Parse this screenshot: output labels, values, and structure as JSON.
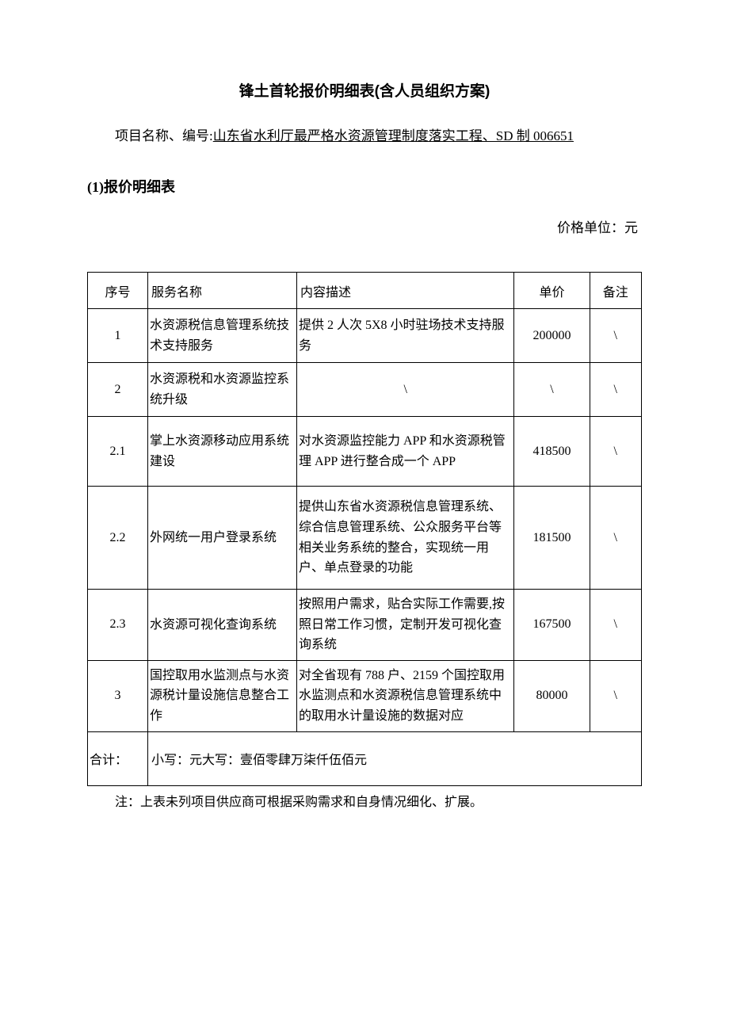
{
  "title": "锋土首轮报价明细表(含人员组织方案)",
  "project": {
    "label": "项目名称、编号:",
    "value": "山东省水利厅最严格水资源管理制度落实工程、SD 制 006651"
  },
  "sub_heading": "(1)报价明细表",
  "price_unit": "价格单位：元",
  "table": {
    "headers": {
      "seq": "序号",
      "name": "服务名称",
      "desc": "内容描述",
      "price": "单价",
      "note": "备注"
    },
    "rows": [
      {
        "seq": "1",
        "name": "水资源税信息管理系统技术支持服务",
        "desc": "提供 2 人次 5X8 小时驻场技术支持服务",
        "price": "200000",
        "note": "\\"
      },
      {
        "seq": "2",
        "name": "水资源税和水资源监控系统升级",
        "desc": "\\",
        "price": "\\",
        "note": "\\"
      },
      {
        "seq": "2.1",
        "name": "掌上水资源移动应用系统建设",
        "desc": "对水资源监控能力 APP 和水资源税管理 APP 进行整合成一个 APP",
        "price": "418500",
        "note": "\\"
      },
      {
        "seq": "2.2",
        "name": "外网统一用户登录系统",
        "desc": "提供山东省水资源税信息管理系统、综合信息管理系统、公众服务平台等相关业务系统的整合，实现统一用户、单点登录的功能",
        "price": "181500",
        "note": "\\"
      },
      {
        "seq": "2.3",
        "name": "水资源可视化查询系统",
        "desc": "按照用户需求，贴合实际工作需要,按照日常工作习惯，定制开发可视化查询系统",
        "price": "167500",
        "note": "\\"
      },
      {
        "seq": "3",
        "name": "国控取用水监测点与水资源税计量设施信息整合工作",
        "desc": "对全省现有 788 户、2159 个国控取用水监测点和水资源税信息管理系统中的取用水计量设施的数据对应",
        "price": "80000",
        "note": "\\"
      }
    ],
    "total": {
      "label": "合计：",
      "content": "小写：元大写：壹佰零肆万柒仟伍佰元"
    }
  },
  "note_line": "注：上表未列项目供应商可根据采购需求和自身情况细化、扩展。"
}
